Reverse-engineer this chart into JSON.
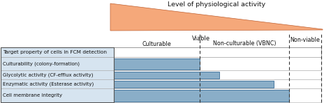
{
  "title": "Level of physiological activity",
  "bar_labels": [
    "Culturability (colony-formation)",
    "Glycolytic activity (CF-efflux activity)",
    "Enzymatic activity (Esterase activity)",
    "Cell membrane integrity"
  ],
  "bar_values": [
    0.415,
    0.51,
    0.77,
    0.845
  ],
  "bar_color": "#8aaec8",
  "bar_edge_color": "#4a7aa0",
  "header_label": "Target property of cells in FCM detection",
  "viable_label": "Viable",
  "culturable_label": "Culturable",
  "nonculturable_label": "Non-culturable (VBNC)",
  "nonviable_label": "Non-viable",
  "dashed_line_1": 0.415,
  "dashed_line_2": 0.845,
  "dashed_line_3": 1.0,
  "bg_row_color": "#d6e4f0",
  "triangle_color": "#f5a87a",
  "triangle_edge_color": "#c06030",
  "fig_bg": "#ffffff",
  "text_color": "#111111"
}
